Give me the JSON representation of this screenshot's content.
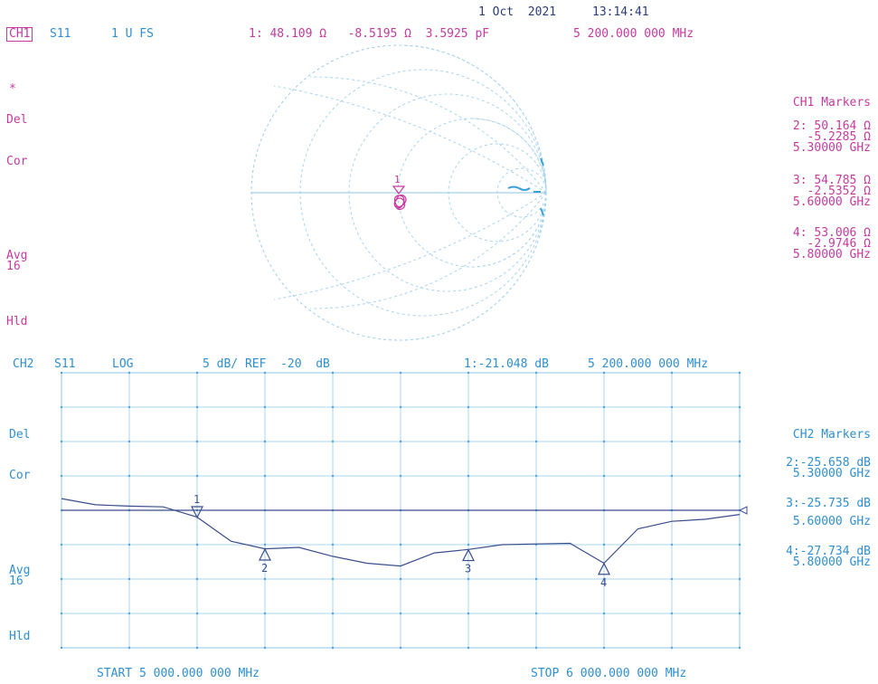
{
  "header": {
    "date": "1 Oct  2021",
    "time": "13:14:41"
  },
  "ch1": {
    "label": "CH1",
    "param": "S11",
    "format": "1 U FS",
    "marker_readout": "1: 48.109 Ω   -8.5195 Ω  3.5925 pF",
    "marker_freq": "5 200.000 000 MHz",
    "star": "*",
    "side_del": "Del",
    "side_cor": "Cor",
    "side_avg": "Avg",
    "side_avg_n": "16",
    "side_hld": "Hld",
    "markers_title": "CH1 Markers",
    "markers": [
      {
        "l1": "2: 50.164 Ω",
        "l2": "-5.2285 Ω",
        "l3": "5.30000 GHz"
      },
      {
        "l1": "3: 54.785 Ω",
        "l2": "-2.5352 Ω",
        "l3": "5.60000 GHz"
      },
      {
        "l1": "4: 53.006 Ω",
        "l2": "-2.9746 Ω",
        "l3": "5.80000 GHz"
      }
    ],
    "smith_marker_label": "1"
  },
  "ch2": {
    "label": "CH2",
    "param": "S11",
    "format": "LOG",
    "scale": "5 dB/ REF  -20  dB",
    "marker_readout": "1:-21.048 dB",
    "marker_freq": "5 200.000 000 MHz",
    "side_del": "Del",
    "side_cor": "Cor",
    "side_avg": "Avg",
    "side_avg_n": "16",
    "side_hld": "Hld",
    "markers_title": "CH2 Markers",
    "markers": [
      {
        "l1": "2:-25.658 dB",
        "l2": "5.30000 GHz"
      },
      {
        "l1": "3:-25.735 dB",
        "l2": "5.60000 GHz"
      },
      {
        "l1": "4:-27.734 dB",
        "l2": "5.80000 GHz"
      }
    ],
    "start": "START 5 000.000 000 MHz",
    "stop": "STOP 6 000.000 000 MHz",
    "trace_markers": [
      "1",
      "2",
      "3",
      "4"
    ]
  },
  "chart_data": {
    "type": "line",
    "x": [
      5000,
      5050,
      5100,
      5150,
      5200,
      5250,
      5300,
      5350,
      5400,
      5450,
      5500,
      5550,
      5600,
      5650,
      5700,
      5750,
      5800,
      5850,
      5900,
      5950,
      6000
    ],
    "series": [
      {
        "values": [
          -18.3,
          -19.2,
          -19.4,
          -19.5,
          -21.0,
          -24.5,
          -25.6,
          -25.4,
          -26.7,
          -27.7,
          -28.1,
          -26.2,
          -25.7,
          -25.0,
          -24.9,
          -24.8,
          -27.7,
          -22.7,
          -21.6,
          -21.3,
          -20.6
        ]
      }
    ],
    "reference": -20,
    "xlim": [
      5000,
      6000
    ],
    "ylim": [
      -40,
      0
    ],
    "grid": true,
    "markers": [
      {
        "label": "1",
        "x": 5200,
        "y": -21.048
      },
      {
        "label": "2",
        "x": 5300,
        "y": -25.658
      },
      {
        "label": "3",
        "x": 5600,
        "y": -25.735
      },
      {
        "label": "4",
        "x": 5800,
        "y": -27.734
      }
    ]
  }
}
